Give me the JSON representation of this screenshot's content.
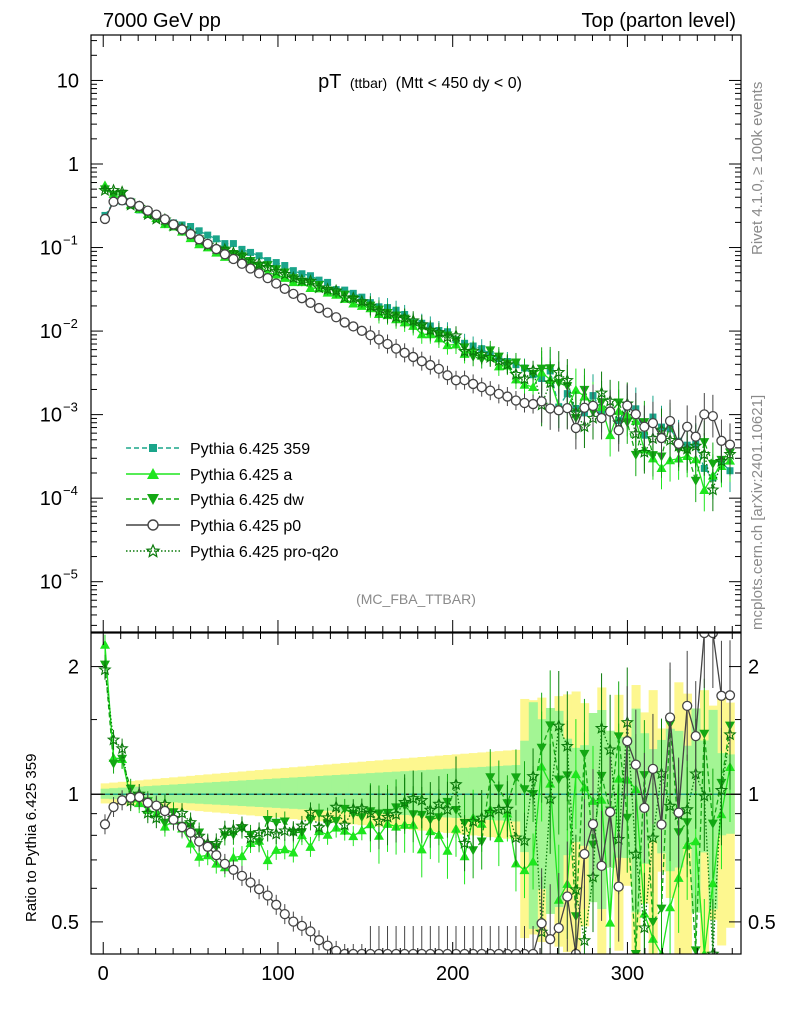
{
  "header": {
    "left": "7000 GeV pp",
    "right": "Top (parton level)"
  },
  "side_label_top": "Rivet 4.1.0, ≥ 100k events",
  "side_label_bottom": "mcplots.cern.ch [arXiv:2401.10621]",
  "analysis_tag": "(MC_FBA_TTBAR)",
  "colors": {
    "pythia_359": "#1aa58a",
    "pythia_a": "#1ee61e",
    "pythia_dw": "#13a813",
    "pythia_p0": "#444444",
    "pythia_proq2o": "#0a7a0a",
    "band_yellow": "#fdf78f",
    "band_green": "#a3f594"
  },
  "chart_data": [
    {
      "type": "line",
      "title": "pT",
      "title_sub": "(ttbar)",
      "title_cut": "(Mtt < 450 dy < 0)",
      "yscale": "log",
      "xlim": [
        -7,
        365
      ],
      "ylim": [
        2.5e-06,
        35
      ],
      "yticks": [
        {
          "value": 10,
          "label": "10"
        },
        {
          "value": 1,
          "label": "1"
        },
        {
          "value": 0.1,
          "label": "10",
          "exp": "−1"
        },
        {
          "value": 0.01,
          "label": "10",
          "exp": "−2"
        },
        {
          "value": 0.001,
          "label": "10",
          "exp": "−3"
        },
        {
          "value": 0.0001,
          "label": "10",
          "exp": "−4"
        },
        {
          "value": 1e-05,
          "label": "10",
          "exp": "−5"
        }
      ],
      "legend_position": "lower-left",
      "series": [
        {
          "key": "s359",
          "name": "Pythia 6.425 359",
          "marker": "square",
          "line": "dashed",
          "colorKey": "pythia_359"
        },
        {
          "key": "sa",
          "name": "Pythia 6.425 a",
          "marker": "triangle-up",
          "line": "solid",
          "colorKey": "pythia_a"
        },
        {
          "key": "sdw",
          "name": "Pythia 6.425 dw",
          "marker": "triangle-down",
          "line": "dashed",
          "colorKey": "pythia_dw"
        },
        {
          "key": "sp0",
          "name": "Pythia 6.425 p0",
          "marker": "circle-open",
          "line": "solid",
          "colorKey": "pythia_p0"
        },
        {
          "key": "sq2o",
          "name": "Pythia 6.425 pro-q2o",
          "marker": "star-open",
          "line": "dotted",
          "colorKey": "pythia_proq2o"
        }
      ],
      "p0_points": [
        [
          1,
          0.22
        ],
        [
          5,
          0.35
        ],
        [
          10,
          0.37
        ],
        [
          15,
          0.35
        ],
        [
          20,
          0.32
        ],
        [
          25,
          0.28
        ],
        [
          30,
          0.25
        ],
        [
          35,
          0.22
        ],
        [
          40,
          0.19
        ],
        [
          45,
          0.165
        ],
        [
          50,
          0.145
        ],
        [
          55,
          0.125
        ],
        [
          60,
          0.11
        ],
        [
          65,
          0.095
        ],
        [
          70,
          0.082
        ],
        [
          75,
          0.072
        ],
        [
          80,
          0.063
        ],
        [
          85,
          0.055
        ],
        [
          90,
          0.048
        ],
        [
          95,
          0.042
        ],
        [
          100,
          0.036
        ],
        [
          105,
          0.031
        ],
        [
          110,
          0.027
        ],
        [
          115,
          0.024
        ],
        [
          120,
          0.021
        ],
        [
          125,
          0.018
        ],
        [
          130,
          0.016
        ],
        [
          135,
          0.014
        ],
        [
          140,
          0.012
        ],
        [
          145,
          0.011
        ],
        [
          150,
          0.0095
        ],
        [
          155,
          0.0085
        ],
        [
          160,
          0.0075
        ],
        [
          165,
          0.0066
        ],
        [
          170,
          0.0058
        ],
        [
          175,
          0.0052
        ],
        [
          180,
          0.0046
        ],
        [
          185,
          0.0041
        ],
        [
          190,
          0.0037
        ],
        [
          195,
          0.0033
        ],
        [
          200,
          0.0025
        ],
        [
          205,
          0.0027
        ],
        [
          210,
          0.0024
        ],
        [
          215,
          0.0022
        ],
        [
          220,
          0.002
        ],
        [
          225,
          0.0018
        ],
        [
          230,
          0.0017
        ],
        [
          235,
          0.0015
        ],
        [
          240,
          0.0014
        ],
        [
          245,
          0.0013
        ],
        [
          250,
          0.0015
        ],
        [
          255,
          0.0012
        ],
        [
          260,
          0.0011
        ],
        [
          265,
          0.0013
        ],
        [
          270,
          0.00065
        ],
        [
          275,
          0.0012
        ],
        [
          280,
          0.0013
        ],
        [
          285,
          0.0009
        ],
        [
          290,
          0.0011
        ],
        [
          295,
          0.00065
        ],
        [
          300,
          0.0013
        ],
        [
          305,
          0.001
        ],
        [
          310,
          0.0007
        ],
        [
          315,
          0.0008
        ],
        [
          320,
          0.0005
        ],
        [
          325,
          0.0009
        ],
        [
          330,
          0.0004
        ],
        [
          335,
          0.0008
        ],
        [
          340,
          0.0005
        ],
        [
          345,
          0.0012
        ],
        [
          350,
          0.0009
        ],
        [
          355,
          0.0004
        ],
        [
          360,
          0.00045
        ]
      ]
    },
    {
      "type": "line",
      "ylabel": "Ratio to Pythia 6.425 359",
      "xlim": [
        -7,
        365
      ],
      "ylim": [
        0.42,
        2.4
      ],
      "yscale": "log",
      "yticks": [
        {
          "value": 2,
          "label": "2"
        },
        {
          "value": 1,
          "label": "1"
        },
        {
          "value": 0.5,
          "label": "0.5"
        }
      ],
      "xticks": [
        0,
        100,
        200,
        300
      ],
      "reference": 1
    }
  ]
}
